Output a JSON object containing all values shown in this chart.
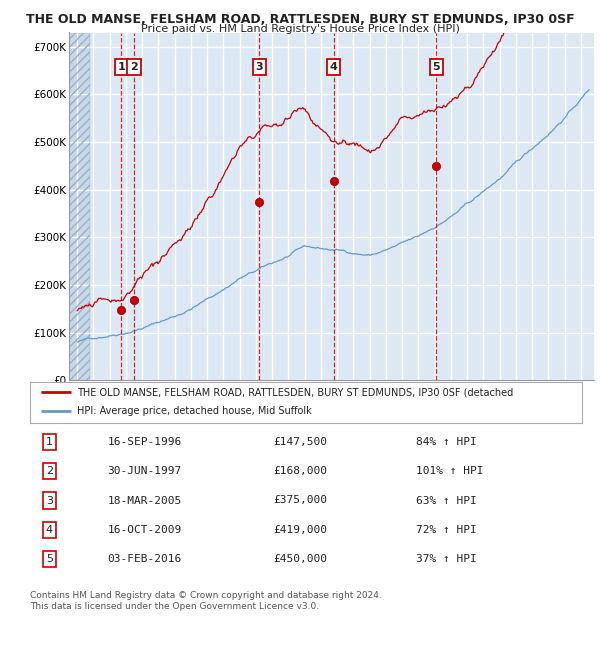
{
  "title1": "THE OLD MANSE, FELSHAM ROAD, RATTLESDEN, BURY ST EDMUNDS, IP30 0SF",
  "title2": "Price paid vs. HM Land Registry's House Price Index (HPI)",
  "plot_bg_color": "#dce9f5",
  "red_line_color": "#cc0000",
  "blue_line_color": "#6699cc",
  "sale_x": [
    1996.71,
    1997.5,
    2005.21,
    2009.79,
    2016.09
  ],
  "sale_y": [
    147500,
    168000,
    375000,
    419000,
    450000
  ],
  "vline_x": [
    1996.71,
    1997.5,
    2005.21,
    2009.79,
    2016.09
  ],
  "box_labels": [
    "1",
    "2",
    "3",
    "4",
    "5"
  ],
  "legend_line1": "THE OLD MANSE, FELSHAM ROAD, RATTLESDEN, BURY ST EDMUNDS, IP30 0SF (detached",
  "legend_line2": "HPI: Average price, detached house, Mid Suffolk",
  "table_rows": [
    {
      "num": "1",
      "date": "16-SEP-1996",
      "price": "£147,500",
      "pct": "84% ↑ HPI"
    },
    {
      "num": "2",
      "date": "30-JUN-1997",
      "price": "£168,000",
      "pct": "101% ↑ HPI"
    },
    {
      "num": "3",
      "date": "18-MAR-2005",
      "price": "£375,000",
      "pct": "63% ↑ HPI"
    },
    {
      "num": "4",
      "date": "16-OCT-2009",
      "price": "£419,000",
      "pct": "72% ↑ HPI"
    },
    {
      "num": "5",
      "date": "03-FEB-2016",
      "price": "£450,000",
      "pct": "37% ↑ HPI"
    }
  ],
  "footer": "Contains HM Land Registry data © Crown copyright and database right 2024.\nThis data is licensed under the Open Government Licence v3.0.",
  "ylim": [
    0,
    730000
  ],
  "yticks": [
    0,
    100000,
    200000,
    300000,
    400000,
    500000,
    600000,
    700000
  ],
  "ytick_labels": [
    "£0",
    "£100K",
    "£200K",
    "£300K",
    "£400K",
    "£500K",
    "£600K",
    "£700K"
  ],
  "xlim_start": 1993.5,
  "xlim_end": 2025.8
}
